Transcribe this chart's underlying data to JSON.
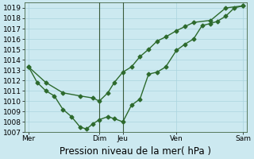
{
  "background_color": "#cce9f0",
  "grid_color": "#b0d8e4",
  "line_color": "#2d6a2d",
  "ylim": [
    1007,
    1019.5
  ],
  "yticks": [
    1007,
    1008,
    1009,
    1010,
    1011,
    1012,
    1013,
    1014,
    1015,
    1016,
    1017,
    1018,
    1019
  ],
  "xlabel": "Pression niveau de la mer( hPa )",
  "xlabel_fontsize": 8.5,
  "xtick_labels": [
    "Mer",
    "Dim",
    "Jeu",
    "Ven",
    "Sam"
  ],
  "xtick_positions": [
    0.0,
    0.33,
    0.44,
    0.69,
    1.0
  ],
  "line1_x": [
    0.0,
    0.04,
    0.08,
    0.12,
    0.16,
    0.2,
    0.24,
    0.27,
    0.3,
    0.33,
    0.37,
    0.4,
    0.44,
    0.48,
    0.52,
    0.56,
    0.6,
    0.64,
    0.69,
    0.73,
    0.77,
    0.81,
    0.85,
    0.88,
    0.92,
    0.96,
    1.0
  ],
  "line1_y": [
    1013.3,
    1011.8,
    1011.0,
    1010.5,
    1009.2,
    1008.5,
    1007.5,
    1007.3,
    1007.8,
    1008.2,
    1008.5,
    1008.3,
    1008.0,
    1009.6,
    1010.2,
    1012.6,
    1012.8,
    1013.3,
    1014.9,
    1015.5,
    1016.0,
    1017.3,
    1017.5,
    1017.7,
    1018.2,
    1019.0,
    1019.2
  ],
  "line2_x": [
    0.0,
    0.08,
    0.16,
    0.24,
    0.3,
    0.33,
    0.37,
    0.4,
    0.44,
    0.48,
    0.52,
    0.56,
    0.6,
    0.64,
    0.69,
    0.73,
    0.77,
    0.85,
    0.92,
    1.0
  ],
  "line2_y": [
    1013.3,
    1011.8,
    1010.8,
    1010.5,
    1010.3,
    1010.0,
    1010.8,
    1011.8,
    1012.8,
    1013.3,
    1014.3,
    1015.0,
    1015.8,
    1016.2,
    1016.8,
    1017.2,
    1017.6,
    1017.8,
    1019.0,
    1019.2
  ],
  "marker": "D",
  "marker_size": 2.5,
  "line_width": 1.0,
  "vlines_x": [
    0.33,
    0.44
  ],
  "tick_fontsize": 6.5,
  "ytick_fontsize": 6.5
}
